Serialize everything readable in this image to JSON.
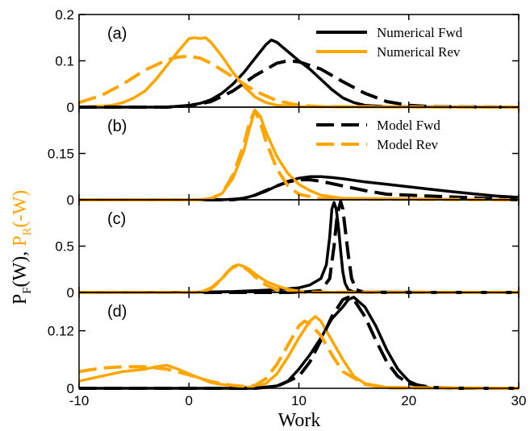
{
  "colors": {
    "fwd": "#000000",
    "rev": "#FFA500"
  },
  "chart_data": {
    "type": "line",
    "xlabel": "Work",
    "ylabel": {
      "part1": "P",
      "sub1": "F",
      "part2": "(W), ",
      "part3": "P",
      "sub2": "R",
      "part4": "(-W)"
    },
    "xlim": [
      -10,
      30
    ],
    "xticks": [
      "-10",
      "0",
      "10",
      "20",
      "30"
    ],
    "legend": [
      {
        "name": "Numerical Fwd",
        "style": "solid",
        "color": "#000000",
        "panel": "(a)"
      },
      {
        "name": "Numerical Rev",
        "style": "solid",
        "color": "#FFA500",
        "panel": "(a)"
      },
      {
        "name": "Model Fwd",
        "style": "dashed",
        "color": "#000000",
        "panel": "(b)"
      },
      {
        "name": "Model Rev",
        "style": "dashed",
        "color": "#FFA500",
        "panel": "(b)"
      }
    ],
    "panels": [
      {
        "label": "(a)",
        "ylim": [
          0,
          0.2
        ],
        "yticks": [
          "0",
          "0.1",
          "0.2"
        ],
        "series": [
          {
            "name": "Numerical Fwd",
            "style": "solid",
            "color": "#000000",
            "x": [
              -10,
              -2,
              0,
              1,
              2,
              3,
              4,
              5,
              6,
              6.5,
              7,
              7.5,
              8,
              8.5,
              9,
              10,
              11,
              12,
              13,
              14,
              15,
              16,
              18,
              30
            ],
            "y": [
              0,
              0,
              0.004,
              0.008,
              0.016,
              0.03,
              0.05,
              0.075,
              0.105,
              0.12,
              0.135,
              0.145,
              0.14,
              0.13,
              0.12,
              0.1,
              0.082,
              0.06,
              0.038,
              0.02,
              0.01,
              0.004,
              0.001,
              0
            ]
          },
          {
            "name": "Numerical Rev",
            "style": "solid",
            "color": "#FFA500",
            "x": [
              -10,
              -8,
              -7,
              -6,
              -5,
              -4,
              -3,
              -2,
              -1,
              0,
              0.5,
              1,
              1.5,
              2,
              3,
              4,
              5,
              6,
              7,
              8,
              10,
              30
            ],
            "y": [
              0,
              0.002,
              0.004,
              0.01,
              0.02,
              0.035,
              0.06,
              0.09,
              0.12,
              0.148,
              0.15,
              0.148,
              0.15,
              0.14,
              0.11,
              0.075,
              0.045,
              0.022,
              0.01,
              0.004,
              0.001,
              0
            ]
          },
          {
            "name": "Model Fwd",
            "style": "dashed",
            "color": "#000000",
            "x": [
              -10,
              -2,
              0,
              2,
              4,
              6,
              8,
              9,
              10,
              12,
              14,
              16,
              18,
              20,
              22,
              30
            ],
            "y": [
              0,
              0,
              0.003,
              0.012,
              0.035,
              0.068,
              0.095,
              0.1,
              0.098,
              0.082,
              0.055,
              0.03,
              0.012,
              0.004,
              0.001,
              0
            ]
          },
          {
            "name": "Model Rev",
            "style": "dashed",
            "color": "#FFA500",
            "x": [
              -10,
              -8,
              -6,
              -4,
              -2,
              -1,
              0,
              1,
              2,
              4,
              6,
              8,
              10,
              12,
              30
            ],
            "y": [
              0.01,
              0.025,
              0.05,
              0.08,
              0.102,
              0.108,
              0.11,
              0.106,
              0.095,
              0.065,
              0.035,
              0.014,
              0.004,
              0.001,
              0
            ]
          }
        ]
      },
      {
        "label": "(b)",
        "ylim": [
          0,
          0.3
        ],
        "yticks": [
          "0",
          "0.15"
        ],
        "series": [
          {
            "name": "Numerical Fwd",
            "style": "solid",
            "color": "#000000",
            "x": [
              -10,
              3,
              4,
              5,
              6,
              7,
              8,
              9,
              10,
              11,
              12,
              13,
              14,
              15,
              16,
              18,
              20,
              22,
              24,
              26,
              28,
              30
            ],
            "y": [
              0,
              0,
              0.002,
              0.005,
              0.015,
              0.028,
              0.045,
              0.06,
              0.07,
              0.075,
              0.075,
              0.072,
              0.068,
              0.063,
              0.058,
              0.05,
              0.042,
              0.034,
              0.026,
              0.019,
              0.012,
              0.008
            ]
          },
          {
            "name": "Numerical Rev",
            "style": "solid",
            "color": "#FFA500",
            "x": [
              -10,
              1,
              2,
              3,
              4,
              5,
              5.5,
              6,
              6.5,
              7,
              8,
              9,
              10,
              11,
              12,
              14,
              30
            ],
            "y": [
              0,
              0,
              0.005,
              0.02,
              0.07,
              0.16,
              0.23,
              0.29,
              0.27,
              0.22,
              0.14,
              0.085,
              0.05,
              0.03,
              0.015,
              0.005,
              0
            ]
          },
          {
            "name": "Model Fwd",
            "style": "dashed",
            "color": "#000000",
            "x": [
              -10,
              4,
              5,
              6,
              7,
              8,
              9,
              10,
              11,
              12,
              14,
              16,
              18,
              30
            ],
            "y": [
              0,
              0,
              0.005,
              0.015,
              0.03,
              0.045,
              0.058,
              0.065,
              0.065,
              0.06,
              0.045,
              0.03,
              0.018,
              0
            ]
          },
          {
            "name": "Model Rev",
            "style": "dashed",
            "color": "#FFA500",
            "x": [
              -10,
              1,
              2,
              3,
              4,
              5,
              5.5,
              6,
              6.5,
              7,
              8,
              9,
              10,
              12,
              30
            ],
            "y": [
              0,
              0,
              0.004,
              0.02,
              0.08,
              0.18,
              0.25,
              0.29,
              0.25,
              0.19,
              0.1,
              0.045,
              0.018,
              0.003,
              0
            ]
          }
        ]
      },
      {
        "label": "(c)",
        "ylim": [
          0,
          1.0
        ],
        "yticks": [
          "0",
          "0.5"
        ],
        "series": [
          {
            "name": "Numerical Fwd",
            "style": "solid",
            "color": "#000000",
            "x": [
              -10,
              0,
              2,
              4,
              6,
              8,
              10,
              11,
              12,
              12.5,
              12.8,
              13,
              13.2,
              13.4,
              13.6,
              13.8,
              14,
              14.2,
              14.5,
              15,
              30
            ],
            "y": [
              0,
              0.002,
              0.005,
              0.01,
              0.02,
              0.03,
              0.05,
              0.08,
              0.15,
              0.3,
              0.6,
              0.9,
              0.97,
              0.9,
              0.7,
              0.45,
              0.22,
              0.1,
              0.03,
              0.005,
              0
            ]
          },
          {
            "name": "Numerical Rev",
            "style": "solid",
            "color": "#FFA500",
            "x": [
              -10,
              1,
              2,
              3,
              3.5,
              4,
              4.5,
              5,
              5.5,
              6,
              7,
              8,
              9,
              10,
              11,
              12,
              30
            ],
            "y": [
              0,
              0,
              0.05,
              0.15,
              0.22,
              0.28,
              0.3,
              0.28,
              0.25,
              0.2,
              0.12,
              0.07,
              0.035,
              0.015,
              0.005,
              0.001,
              0
            ]
          },
          {
            "name": "Model Fwd",
            "style": "dashed",
            "color": "#000000",
            "x": [
              -10,
              10,
              12,
              12.8,
              13.2,
              13.5,
              13.8,
              14,
              14.2,
              14.5,
              14.8,
              15.2,
              16,
              30
            ],
            "y": [
              0,
              0,
              0.02,
              0.15,
              0.5,
              0.85,
              0.98,
              0.9,
              0.7,
              0.4,
              0.15,
              0.03,
              0,
              0
            ]
          },
          {
            "name": "Model Rev",
            "style": "dashed",
            "color": "#FFA500",
            "x": [
              -10,
              1,
              2,
              3,
              3.5,
              4,
              4.5,
              5,
              5.5,
              6,
              7,
              8,
              9,
              10,
              30
            ],
            "y": [
              0,
              0,
              0.04,
              0.14,
              0.22,
              0.27,
              0.29,
              0.27,
              0.23,
              0.17,
              0.08,
              0.03,
              0.01,
              0.002,
              0
            ]
          }
        ]
      },
      {
        "label": "(d)",
        "ylim": [
          0,
          0.2
        ],
        "yticks": [
          "0",
          "0.12"
        ],
        "series": [
          {
            "name": "Numerical Fwd",
            "style": "solid",
            "color": "#000000",
            "x": [
              -10,
              6,
              8,
              9,
              10,
              11,
              12,
              13,
              14,
              14.5,
              15,
              15.5,
              16,
              17,
              18,
              19,
              20,
              21,
              22,
              30
            ],
            "y": [
              0,
              0,
              0.005,
              0.015,
              0.04,
              0.07,
              0.105,
              0.145,
              0.17,
              0.185,
              0.19,
              0.18,
              0.17,
              0.13,
              0.08,
              0.04,
              0.015,
              0.005,
              0.001,
              0
            ]
          },
          {
            "name": "Numerical Rev",
            "style": "solid",
            "color": "#FFA500",
            "x": [
              -10,
              -8,
              -6,
              -4,
              -3,
              -2,
              -1,
              0,
              2,
              4,
              5,
              6,
              7,
              8,
              9,
              10,
              11,
              11.5,
              12,
              13,
              14,
              15,
              16,
              18,
              30
            ],
            "y": [
              0.015,
              0.025,
              0.035,
              0.04,
              0.045,
              0.048,
              0.04,
              0.03,
              0.012,
              0.004,
              0.002,
              0.003,
              0.01,
              0.03,
              0.065,
              0.105,
              0.14,
              0.15,
              0.14,
              0.1,
              0.06,
              0.025,
              0.01,
              0.002,
              0
            ]
          },
          {
            "name": "Model Fwd",
            "style": "dashed",
            "color": "#000000",
            "x": [
              -10,
              6,
              8,
              10,
              11,
              12,
              13,
              14,
              14.5,
              15,
              16,
              17,
              18,
              19,
              20,
              22,
              24,
              30
            ],
            "y": [
              0,
              0,
              0.004,
              0.025,
              0.055,
              0.1,
              0.15,
              0.185,
              0.19,
              0.185,
              0.15,
              0.1,
              0.055,
              0.025,
              0.01,
              0.002,
              0,
              0
            ]
          },
          {
            "name": "Model Rev",
            "style": "dashed",
            "color": "#FFA500",
            "x": [
              -10,
              -8,
              -6,
              -4,
              -2,
              0,
              2,
              4,
              5,
              6,
              7,
              8,
              9,
              10,
              10.5,
              11,
              12,
              13,
              14,
              16,
              18,
              30
            ],
            "y": [
              0.035,
              0.042,
              0.045,
              0.045,
              0.04,
              0.028,
              0.014,
              0.006,
              0.004,
              0.006,
              0.02,
              0.05,
              0.09,
              0.13,
              0.14,
              0.135,
              0.11,
              0.07,
              0.035,
              0.008,
              0.001,
              0
            ]
          }
        ]
      }
    ]
  }
}
